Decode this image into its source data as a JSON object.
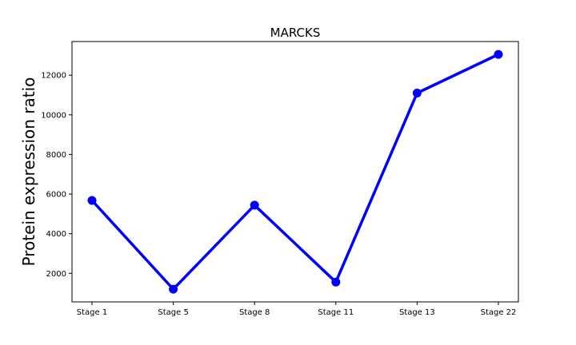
{
  "chart_data": {
    "type": "line",
    "title": "MARCKS",
    "xlabel": "",
    "ylabel": "Protein expression ratio",
    "categories": [
      "Stage 1",
      "Stage 5",
      "Stage 8",
      "Stage 11",
      "Stage 13",
      "Stage 22"
    ],
    "series": [
      {
        "values": [
          5680,
          1200,
          5440,
          1560,
          11100,
          13050
        ],
        "color": "#0000ff"
      }
    ],
    "yticks": [
      2000,
      4000,
      6000,
      8000,
      10000,
      12000
    ],
    "ylim": [
      560,
      13700
    ],
    "grid": false,
    "legend": "none"
  }
}
